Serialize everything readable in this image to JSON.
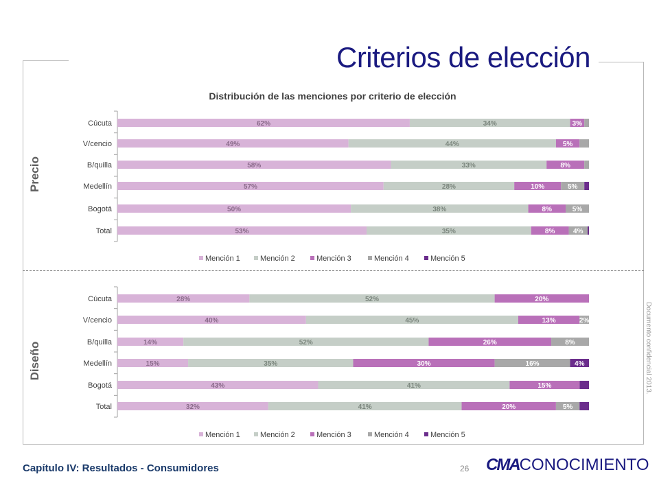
{
  "page": {
    "title": "Criterios de elección",
    "footer_chapter": "Capítulo IV: Resultados - Consumidores",
    "page_number": "26",
    "logo_bold": "CMA",
    "logo_light": "CONOCIMIENTO",
    "confidential": "Documento confidencial 2013."
  },
  "colors": {
    "mencion1": "#d8b3d8",
    "mencion2": "#c5cec7",
    "mencion3": "#b970b9",
    "mencion4": "#a8a8a8",
    "mencion5": "#6b2d8c",
    "title": "#1a1a80"
  },
  "chart_data": [
    {
      "type": "bar",
      "orientation": "horizontal",
      "stacked": true,
      "title": "Distribución de las menciones por criterio de elección",
      "side_label": "Precio",
      "categories": [
        "Cúcuta",
        "V/cencio",
        "B/quilla",
        "Medellín",
        "Bogotá",
        "Total"
      ],
      "series": [
        {
          "name": "Mención 1",
          "values": [
            62,
            49,
            58,
            57,
            50,
            53
          ],
          "labels": [
            "62%",
            "49%",
            "58%",
            "57%",
            "50%",
            "53%"
          ]
        },
        {
          "name": "Mención 2",
          "values": [
            34,
            44,
            33,
            28,
            38,
            35
          ],
          "labels": [
            "34%",
            "44%",
            "33%",
            "28%",
            "38%",
            "35%"
          ]
        },
        {
          "name": "Mención 3",
          "values": [
            3,
            5,
            8,
            10,
            8,
            8
          ],
          "labels": [
            "3%",
            "5%",
            "8%",
            "10%",
            "8%",
            "8%"
          ]
        },
        {
          "name": "Mención 4",
          "values": [
            1,
            2,
            1,
            5,
            5,
            4
          ],
          "labels": [
            "",
            "",
            "",
            "5%",
            "5%",
            "4%"
          ]
        },
        {
          "name": "Mención 5",
          "values": [
            0,
            0,
            0,
            1,
            0,
            0.3
          ],
          "labels": [
            "",
            "",
            "",
            "",
            "",
            ""
          ]
        }
      ],
      "legend_position": "bottom"
    },
    {
      "type": "bar",
      "orientation": "horizontal",
      "stacked": true,
      "title": "",
      "side_label": "Diseño",
      "categories": [
        "Cúcuta",
        "V/cencio",
        "B/quilla",
        "Medellín",
        "Bogotá",
        "Total"
      ],
      "series": [
        {
          "name": "Mención 1",
          "values": [
            28,
            40,
            14,
            15,
            43,
            32
          ],
          "labels": [
            "28%",
            "40%",
            "14%",
            "15%",
            "43%",
            "32%"
          ]
        },
        {
          "name": "Mención 2",
          "values": [
            52,
            45,
            52,
            35,
            41,
            41
          ],
          "labels": [
            "52%",
            "45%",
            "52%",
            "35%",
            "41%",
            "41%"
          ]
        },
        {
          "name": "Mención 3",
          "values": [
            20,
            13,
            26,
            30,
            15,
            20
          ],
          "labels": [
            "20%",
            "13%",
            "26%",
            "30%",
            "15%",
            "20%"
          ]
        },
        {
          "name": "Mención 4",
          "values": [
            0,
            2,
            8,
            16,
            0,
            5
          ],
          "labels": [
            "",
            "2%",
            "8%",
            "16%",
            "",
            "5%"
          ]
        },
        {
          "name": "Mención 5",
          "values": [
            0,
            0,
            0,
            4,
            2,
            2
          ],
          "labels": [
            "",
            "",
            "",
            "4%",
            "",
            ""
          ]
        }
      ],
      "legend_position": "bottom"
    }
  ]
}
